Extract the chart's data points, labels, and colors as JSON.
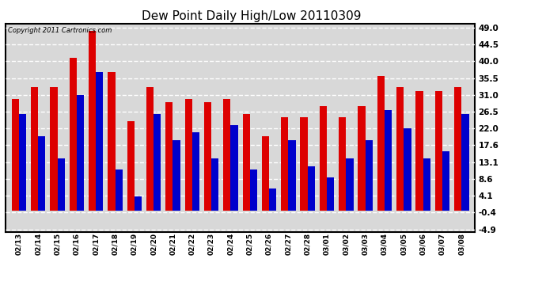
{
  "title": "Dew Point Daily High/Low 20110309",
  "copyright": "Copyright 2011 Cartronics.com",
  "dates": [
    "02/13",
    "02/14",
    "02/15",
    "02/16",
    "02/17",
    "02/18",
    "02/19",
    "02/20",
    "02/21",
    "02/22",
    "02/23",
    "02/24",
    "02/25",
    "02/26",
    "02/27",
    "02/28",
    "03/01",
    "03/02",
    "03/03",
    "03/04",
    "03/05",
    "03/06",
    "03/07",
    "03/08"
  ],
  "highs": [
    30,
    33,
    33,
    41,
    48,
    37,
    24,
    33,
    29,
    30,
    29,
    30,
    26,
    20,
    25,
    25,
    28,
    25,
    28,
    36,
    33,
    32,
    32,
    33
  ],
  "lows": [
    26,
    20,
    14,
    31,
    37,
    11,
    4,
    26,
    19,
    21,
    14,
    23,
    11,
    6,
    19,
    12,
    9,
    14,
    19,
    27,
    22,
    14,
    16,
    26
  ],
  "high_color": "#dd0000",
  "low_color": "#0000cc",
  "background_color": "#ffffff",
  "plot_background": "#d8d8d8",
  "grid_color": "#ffffff",
  "yticks": [
    -4.9,
    -0.4,
    4.1,
    8.6,
    13.1,
    17.6,
    22.0,
    26.5,
    31.0,
    35.5,
    40.0,
    44.5,
    49.0
  ],
  "ylim": [
    -5.5,
    50.0
  ],
  "bar_width": 0.38
}
